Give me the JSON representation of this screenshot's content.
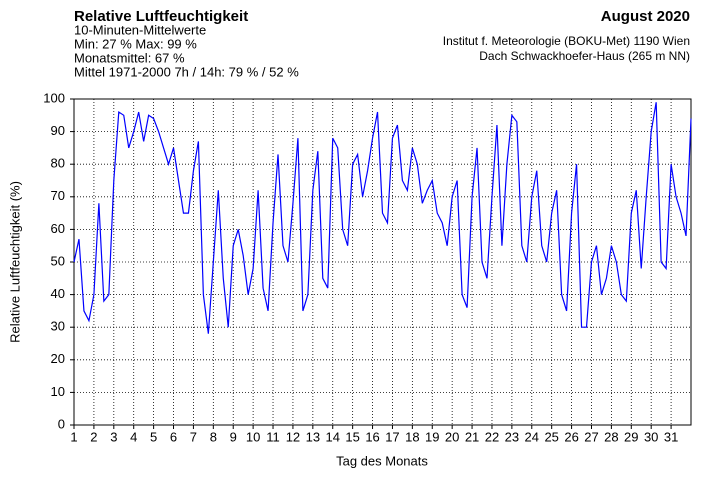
{
  "chart_data": {
    "type": "line",
    "title": "Relative Luftfeuchtigkeit",
    "subtitle": "10-Minuten-Mittelwerte",
    "notes": [
      "Min:  27 %   Max:  99 %",
      "Monatsmittel:  67 %",
      "Mittel 1971-2000 7h / 14h:  79 % / 52 %"
    ],
    "period": "August 2020",
    "source": [
      "Institut f. Meteorologie (BOKU-Met) 1190 Wien",
      "Dach Schwackhoefer-Haus (265 m NN)"
    ],
    "x_label": "Tag des Monats",
    "y_label": "Relative Luftfeuchtigkeit (%)",
    "grid": true,
    "xlim": [
      1,
      32
    ],
    "xticks": [
      1,
      2,
      3,
      4,
      5,
      6,
      7,
      8,
      9,
      10,
      11,
      12,
      13,
      14,
      15,
      16,
      17,
      18,
      19,
      20,
      21,
      22,
      23,
      24,
      25,
      26,
      27,
      28,
      29,
      30,
      31
    ],
    "ylim": [
      0,
      100
    ],
    "yticks": [
      0,
      10,
      20,
      30,
      40,
      50,
      60,
      70,
      80,
      90,
      100
    ],
    "x": [
      1,
      1.25,
      1.5,
      1.75,
      2,
      2.25,
      2.5,
      2.75,
      3,
      3.25,
      3.5,
      3.75,
      4,
      4.25,
      4.5,
      4.75,
      5,
      5.25,
      5.5,
      5.75,
      6,
      6.25,
      6.5,
      6.75,
      7,
      7.25,
      7.5,
      7.75,
      8,
      8.25,
      8.5,
      8.75,
      9,
      9.25,
      9.5,
      9.75,
      10,
      10.25,
      10.5,
      10.75,
      11,
      11.25,
      11.5,
      11.75,
      12,
      12.25,
      12.5,
      12.75,
      13,
      13.25,
      13.5,
      13.75,
      14,
      14.25,
      14.5,
      14.75,
      15,
      15.25,
      15.5,
      15.75,
      16,
      16.25,
      16.5,
      16.75,
      17,
      17.25,
      17.5,
      17.75,
      18,
      18.25,
      18.5,
      18.75,
      19,
      19.25,
      19.5,
      19.75,
      20,
      20.25,
      20.5,
      20.75,
      21,
      21.25,
      21.5,
      21.75,
      22,
      22.25,
      22.5,
      22.75,
      23,
      23.25,
      23.5,
      23.75,
      24,
      24.25,
      24.5,
      24.75,
      25,
      25.25,
      25.5,
      25.75,
      26,
      26.25,
      26.5,
      26.75,
      27,
      27.25,
      27.5,
      27.75,
      28,
      28.25,
      28.5,
      28.75,
      29,
      29.25,
      29.5,
      29.75,
      30,
      30.25,
      30.5,
      30.75,
      31,
      31.25,
      31.5,
      31.75,
      32
    ],
    "series": [
      {
        "color": "#0000ff",
        "values": [
          50,
          57,
          35,
          32,
          40,
          68,
          38,
          40,
          75,
          96,
          95,
          85,
          90,
          96,
          87,
          95,
          94,
          90,
          85,
          80,
          85,
          75,
          65,
          65,
          78,
          87,
          40,
          28,
          50,
          72,
          45,
          30,
          55,
          60,
          52,
          40,
          48,
          72,
          42,
          35,
          62,
          83,
          55,
          50,
          68,
          88,
          35,
          40,
          72,
          84,
          45,
          42,
          88,
          85,
          60,
          55,
          80,
          83,
          70,
          78,
          88,
          96,
          65,
          62,
          88,
          92,
          75,
          72,
          85,
          80,
          68,
          72,
          75,
          65,
          62,
          55,
          70,
          75,
          40,
          36,
          70,
          85,
          50,
          45,
          70,
          92,
          55,
          80,
          95,
          93,
          55,
          50,
          70,
          78,
          55,
          50,
          65,
          72,
          40,
          35,
          65,
          80,
          30,
          30,
          50,
          55,
          40,
          45,
          55,
          50,
          40,
          38,
          65,
          72,
          48,
          70,
          90,
          99,
          50,
          48,
          80,
          70,
          65,
          58,
          94
        ]
      }
    ]
  }
}
